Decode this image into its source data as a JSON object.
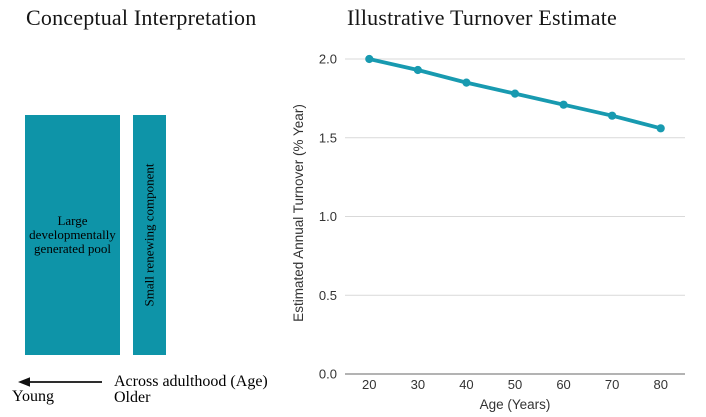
{
  "left_panel": {
    "title": "Conceptual Interpretation",
    "large_pool_label_lines": [
      "Large",
      "developmentally",
      "generated pool"
    ],
    "small_component_label": "Small renewing component",
    "axis_note": "Across adulthood (Age)",
    "young_label": "Young",
    "older_label": "Older",
    "block_color": "#0e94a8"
  },
  "right_panel": {
    "title": "Illustrative Turnover Estimate"
  },
  "chart_data": {
    "type": "line",
    "title": "Illustrative Turnover Estimate",
    "x": [
      20,
      30,
      40,
      50,
      60,
      70,
      80
    ],
    "values": [
      2.0,
      1.93,
      1.85,
      1.78,
      1.71,
      1.64,
      1.56
    ],
    "xlabel": "Age (Years)",
    "ylabel": "Estimated Annual Turnover (% Year)",
    "xlim": [
      15,
      85
    ],
    "ylim": [
      0,
      2.0
    ],
    "xticks": [
      20,
      30,
      40,
      50,
      60,
      70,
      80
    ],
    "xtick_labels": [
      "20",
      "30",
      "40",
      "50",
      "60",
      "70",
      "80"
    ],
    "yticks": [
      0,
      0.5,
      1.0,
      1.5,
      2.0
    ],
    "ytick_labels": [
      "0.0",
      "0.5",
      "1.0",
      "1.5",
      "2.0"
    ],
    "grid": true,
    "legend": "none",
    "marker": "circle",
    "line_color": "#189ab0",
    "grid_color": "#d9d9d9",
    "zero_line_color": "#9a9a9a",
    "tick_color": "#333333"
  }
}
